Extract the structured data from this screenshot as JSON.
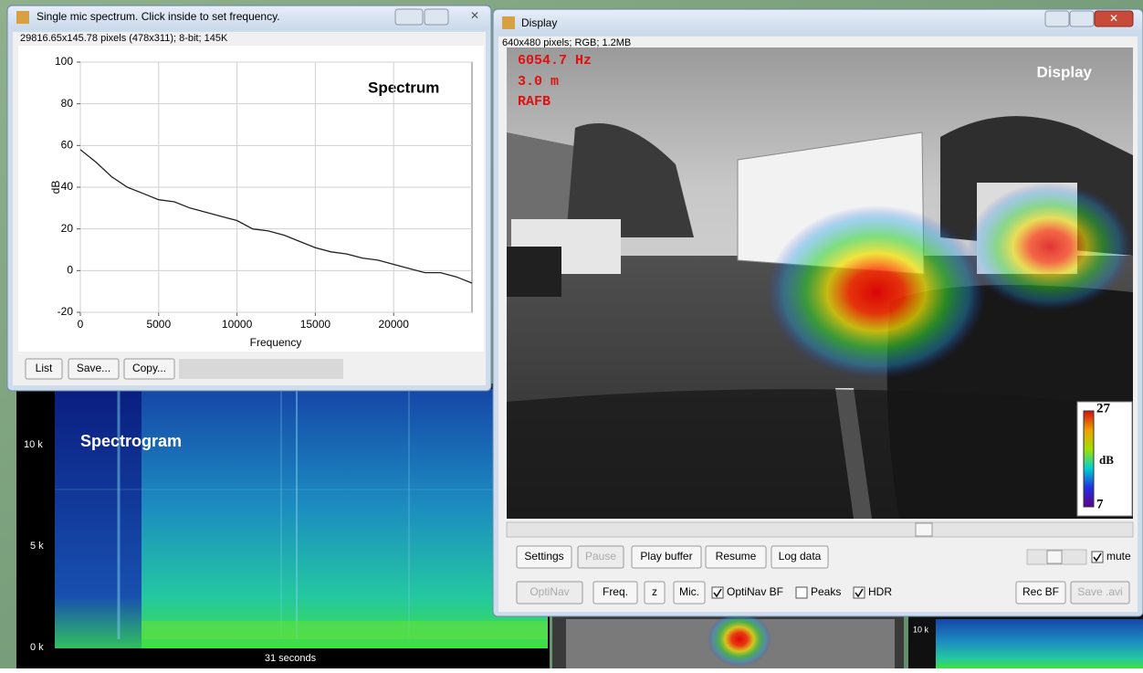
{
  "spectrum_window": {
    "title": "Single mic spectrum. Click inside to set frequency.",
    "info": "29816.65x145.78 pixels (478x311); 8-bit; 145K",
    "plot": {
      "type": "line",
      "title": "Spectrum",
      "xlabel": "Frequency",
      "ylabel": "dB",
      "xlim": [
        0,
        25000
      ],
      "ylim": [
        -20,
        100
      ],
      "xticks": [
        0,
        5000,
        10000,
        15000,
        20000
      ],
      "yticks": [
        -20,
        0,
        20,
        40,
        60,
        80,
        100
      ],
      "grid": true,
      "color": "#222222",
      "x": [
        0,
        1000,
        2000,
        3000,
        4000,
        5000,
        6000,
        7000,
        8000,
        9000,
        10000,
        11000,
        12000,
        13000,
        14000,
        15000,
        16000,
        17000,
        18000,
        19000,
        20000,
        21000,
        22000,
        23000,
        24000,
        25000
      ],
      "values": [
        58,
        52,
        45,
        40,
        37,
        34,
        33,
        30,
        28,
        26,
        24,
        20,
        19,
        17,
        14,
        11,
        9,
        8,
        6,
        5,
        3,
        1,
        -1,
        -1,
        -3,
        -6
      ]
    },
    "buttons": [
      "List",
      "Save...",
      "Copy..."
    ]
  },
  "spectrogram": {
    "title": "Spectrogram",
    "y_labels": [
      "10 k",
      "5 k",
      "0 k"
    ],
    "time_label": "31 seconds"
  },
  "display_window": {
    "title": "Display",
    "info": "640x480 pixels; RGB; 1.2MB",
    "overlay": {
      "frequency": "6054.7 Hz",
      "distance": "3.0 m",
      "mode": "RAFB",
      "label": "Display"
    },
    "colorbar": {
      "max": 27,
      "unit": "dB",
      "min": 7
    },
    "buttons_row1": [
      {
        "label": "Settings",
        "disabled": false
      },
      {
        "label": "Pause",
        "disabled": true
      },
      {
        "label": "Play buffer",
        "disabled": false
      },
      {
        "label": "Resume",
        "disabled": false
      },
      {
        "label": "Log data",
        "disabled": false
      }
    ],
    "mute": {
      "label": "mute",
      "checked": true
    },
    "buttons_row2": [
      {
        "label": "OptiNav",
        "disabled": true
      },
      {
        "label": "Freq.",
        "disabled": false
      },
      {
        "label": "z",
        "disabled": false
      },
      {
        "label": "Mic.",
        "disabled": false
      }
    ],
    "checkboxes": [
      {
        "label": "OptiNav BF",
        "checked": true
      },
      {
        "label": "Peaks",
        "checked": false
      },
      {
        "label": "HDR",
        "checked": true
      }
    ],
    "buttons_row3": [
      {
        "label": "Rec BF",
        "disabled": false
      },
      {
        "label": "Save .avi",
        "disabled": true
      }
    ]
  },
  "background": {
    "spectrogram_label": "10 k"
  }
}
